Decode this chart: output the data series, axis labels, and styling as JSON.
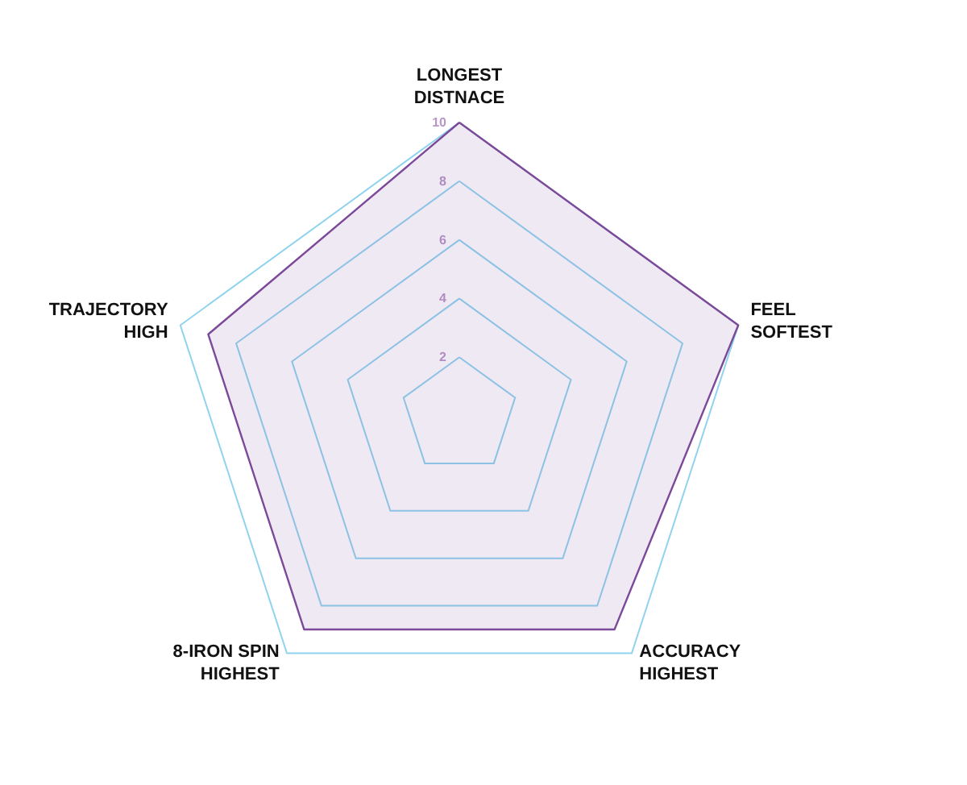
{
  "chart_data": {
    "type": "radar",
    "categories": [
      "LONGEST\nDISTNACE",
      "FEEL\nSOFTEST",
      "ACCURACY\nHIGHEST",
      "8-IRON SPIN\nHIGHEST",
      "TRAJECTORY\nHIGH"
    ],
    "series": [
      {
        "color": "#7d4a9a",
        "values": [
          10,
          10,
          9,
          9,
          9
        ]
      }
    ],
    "ylim": [
      0,
      10
    ],
    "yticks": [
      2,
      4,
      6,
      8,
      10
    ],
    "grid": true,
    "marker": "none",
    "line_style": "solid"
  }
}
